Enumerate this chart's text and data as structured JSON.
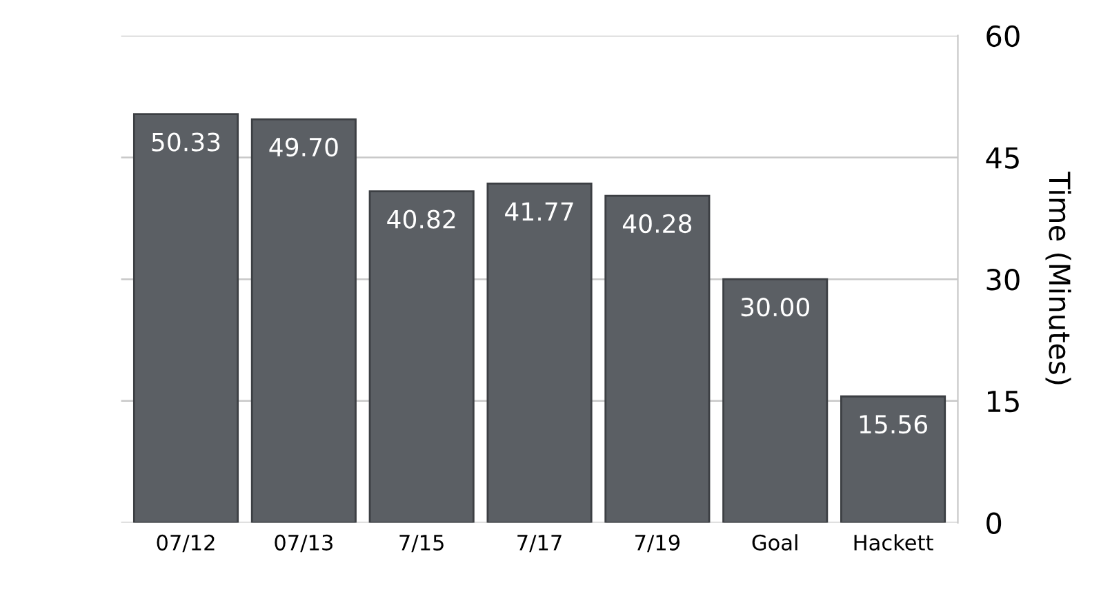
{
  "chart_data": {
    "type": "bar",
    "ylabel": "Time (Minutes)",
    "categories": [
      "07/12",
      "07/13",
      "7/15",
      "7/17",
      "7/19",
      "Goal",
      "Hackett"
    ],
    "values": [
      50.33,
      49.7,
      40.82,
      41.77,
      40.28,
      30.0,
      15.56
    ],
    "value_labels": [
      "50.33",
      "49.70",
      "40.82",
      "41.77",
      "40.28",
      "30.00",
      "15.56"
    ],
    "color": "#5b5f64",
    "ylim": [
      0,
      60
    ],
    "yticks": [
      0,
      15,
      30,
      45,
      60
    ],
    "grid": "y",
    "legend": false
  }
}
